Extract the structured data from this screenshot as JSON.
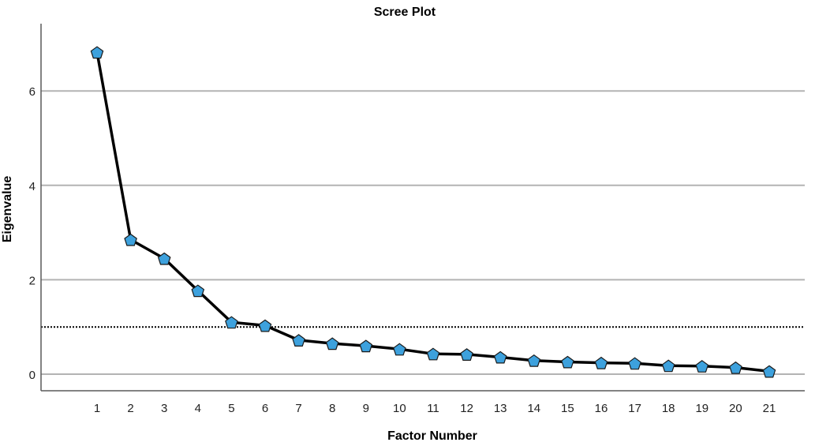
{
  "chart_data": {
    "type": "line",
    "title": "Scree Plot",
    "xlabel": "Factor Number",
    "ylabel": "Eigenvalue",
    "x": [
      1,
      2,
      3,
      4,
      5,
      6,
      7,
      8,
      9,
      10,
      11,
      12,
      13,
      14,
      15,
      16,
      17,
      18,
      19,
      20,
      21
    ],
    "series": [
      {
        "values": [
          6.82,
          2.85,
          2.45,
          1.77,
          1.1,
          1.03,
          0.72,
          0.65,
          0.6,
          0.53,
          0.43,
          0.42,
          0.36,
          0.29,
          0.26,
          0.24,
          0.23,
          0.18,
          0.17,
          0.14,
          0.06
        ]
      }
    ],
    "ylim": [
      -0.35,
      7.4
    ],
    "y_ticks": [
      0,
      2,
      4,
      6
    ],
    "x_ticks": [
      "1",
      "2",
      "3",
      "4",
      "5",
      "6",
      "7",
      "8",
      "9",
      "10",
      "11",
      "12",
      "13",
      "14",
      "15",
      "16",
      "17",
      "18",
      "19",
      "20",
      "21"
    ],
    "reference_line": {
      "y": 1,
      "style": "dotted"
    },
    "grid": true,
    "colors": {
      "line": "#000000",
      "marker_fill": "#3da1dd",
      "marker_stroke": "#1a1a1a",
      "grid": "#b3b3b3",
      "axis": "#5a5a5a"
    },
    "marker": "pentagon"
  }
}
